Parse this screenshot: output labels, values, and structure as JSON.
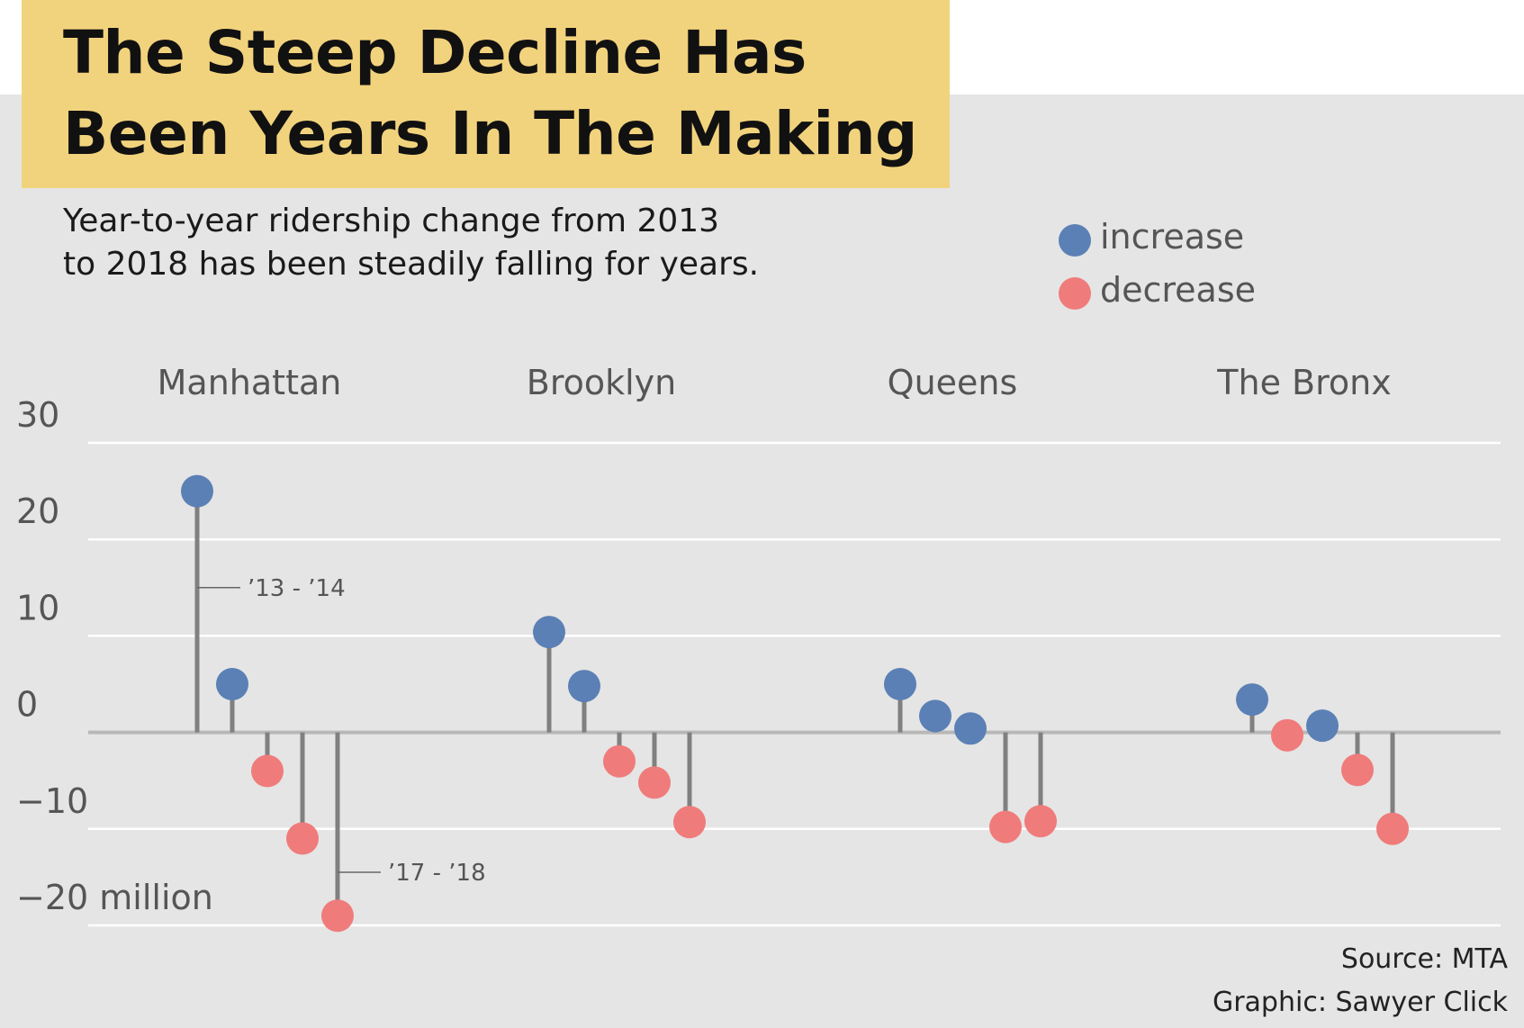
{
  "title": "The Steep Decline Has\nBeen Years In The Making",
  "subtitle": "Year-to-year ridership change from 2013\nto 2018 has been steadily falling for years.",
  "legend": {
    "increase": "increase",
    "decrease": "decrease"
  },
  "colors": {
    "increase": "#5b80b5",
    "decrease": "#f07b7b",
    "stem": "#808080",
    "title_bg": "#f2d37d",
    "panel_bg": "#e5e5e5"
  },
  "footer": {
    "source": "Source: MTA",
    "credit": "Graphic: Sawyer Click"
  },
  "chart_data": {
    "type": "lollipop",
    "unit": "million",
    "ylim": [
      -20,
      30
    ],
    "yticks": [
      30,
      20,
      10,
      0,
      -10,
      -20
    ],
    "ytick_labels": [
      "30",
      "20",
      "10",
      "0",
      "−10",
      "−20 million"
    ],
    "grid": true,
    "legend_position": "top-right",
    "groups": [
      {
        "name": "Manhattan",
        "values": [
          25,
          5,
          -4,
          -11,
          -19
        ]
      },
      {
        "name": "Brooklyn",
        "values": [
          10.4,
          4.8,
          -3,
          -5.2,
          -9.3
        ]
      },
      {
        "name": "Queens",
        "values": [
          5,
          1.7,
          0.4,
          -9.8,
          -9.2
        ]
      },
      {
        "name": "The Bronx",
        "values": [
          3.4,
          -0.3,
          0.7,
          -3.9,
          -10
        ]
      }
    ],
    "annotations": [
      {
        "group": "Manhattan",
        "index": 0,
        "label": "’13 - ’14",
        "at_value": 15
      },
      {
        "group": "Manhattan",
        "index": 4,
        "label": "’17 - ’18",
        "at_value": -14.5
      }
    ]
  }
}
